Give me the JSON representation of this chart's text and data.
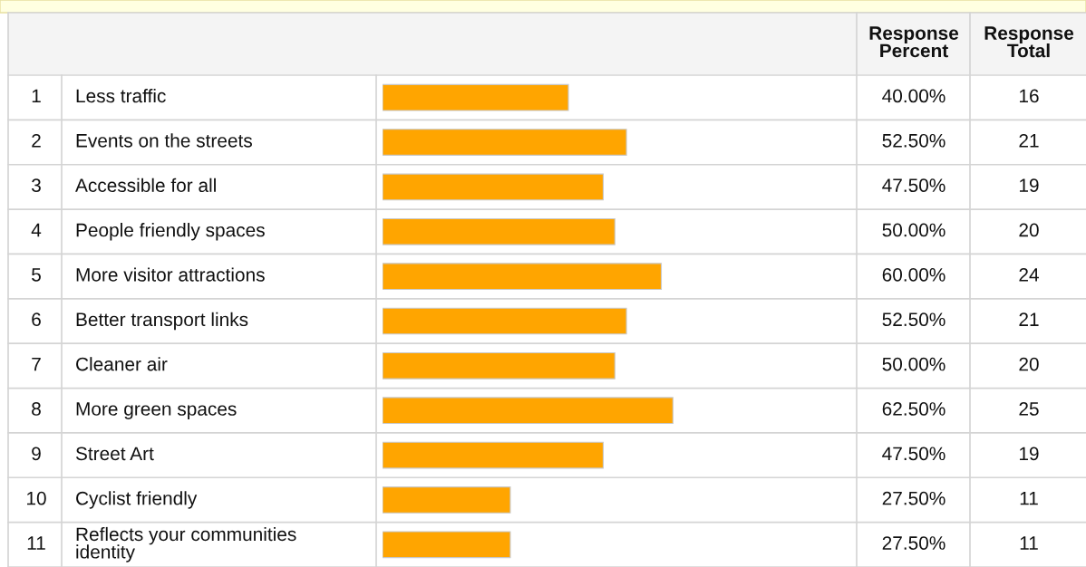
{
  "chart_data": {
    "type": "bar",
    "orientation": "horizontal",
    "categories": [
      "Less traffic",
      "Events on the streets",
      "Accessible for all",
      "People friendly spaces",
      "More visitor attractions",
      "Better transport links",
      "Cleaner air",
      "More green spaces",
      "Street Art",
      "Cyclist friendly",
      "Reflects your communities\nidentity"
    ],
    "values": [
      40.0,
      52.5,
      47.5,
      50.0,
      60.0,
      52.5,
      50.0,
      62.5,
      47.5,
      27.5,
      27.5
    ],
    "value_labels": [
      "40.00%",
      "52.50%",
      "47.50%",
      "50.00%",
      "60.00%",
      "52.50%",
      "50.00%",
      "62.50%",
      "47.50%",
      "27.50%",
      "27.50%"
    ],
    "color": "#ffa500",
    "annotations": [
      "Response\nPercent",
      "Response\nTotal",
      "1",
      "2",
      "3",
      "4",
      "5",
      "6",
      "7",
      "8",
      "9",
      "10",
      "11",
      "16",
      "21",
      "19",
      "20",
      "24",
      "21",
      "20",
      "25",
      "19",
      "11",
      "11"
    ]
  }
}
